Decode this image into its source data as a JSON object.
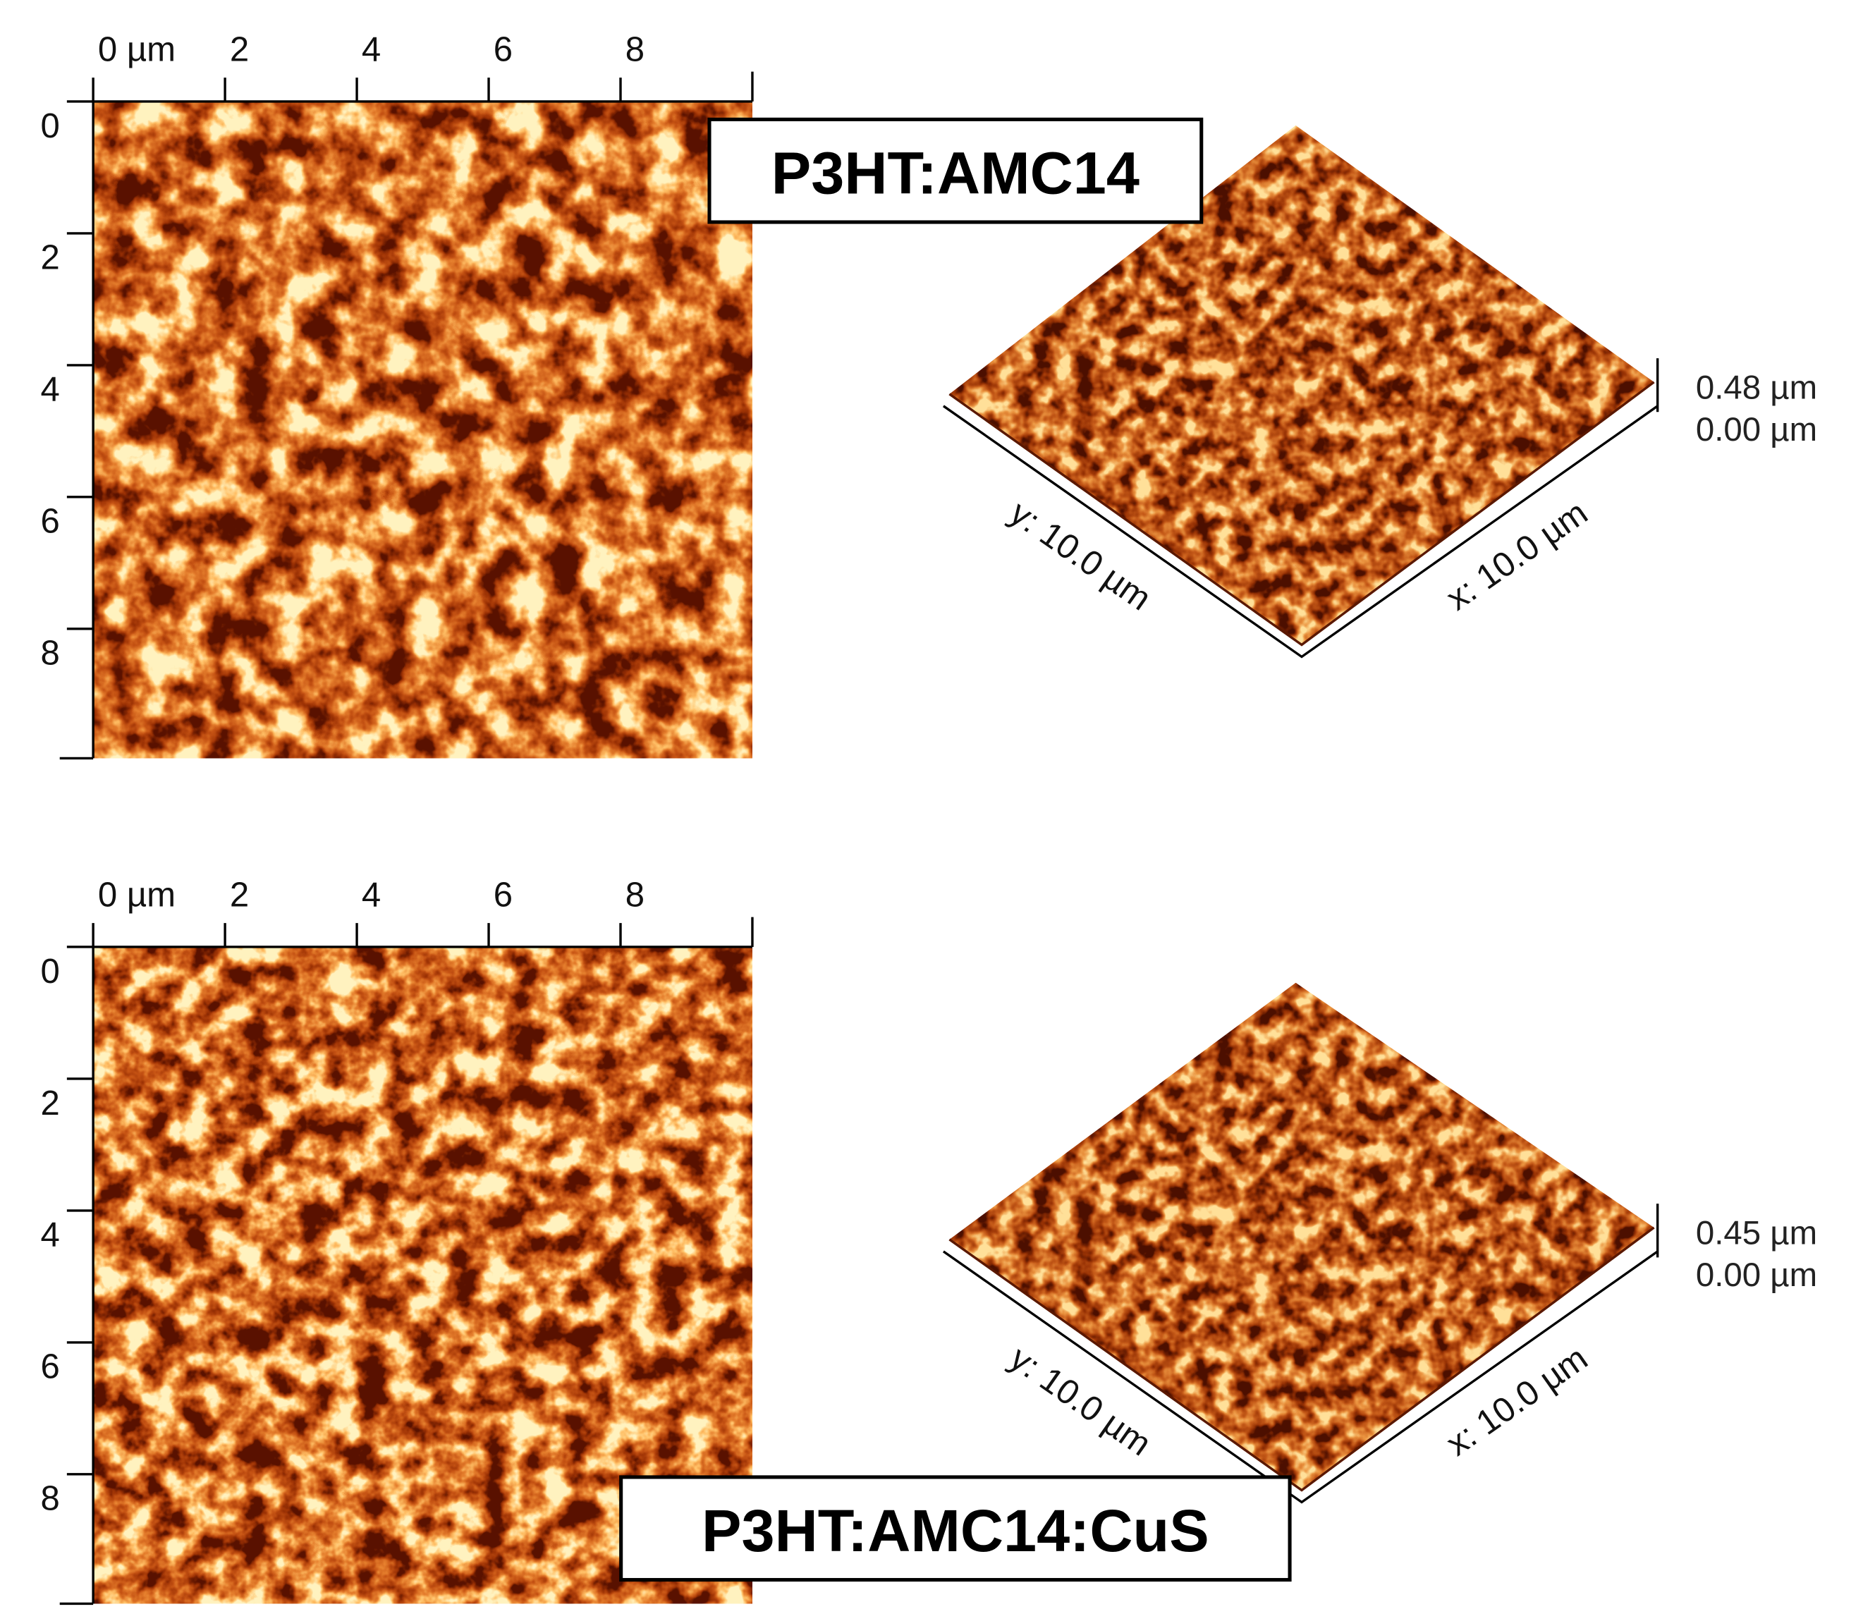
{
  "panels": [
    {
      "title": "P3HT:AMC14",
      "map": {
        "x_ticks": [
          "0 µm",
          "2",
          "4",
          "6",
          "8"
        ],
        "y_ticks": [
          "0",
          "2",
          "4",
          "6",
          "8"
        ]
      },
      "surface": {
        "y_label": "y: 10.0 µm",
        "x_label": "x: 10.0 µm",
        "z_max": "0.48 µm",
        "z_min": "0.00 µm"
      }
    },
    {
      "title": "P3HT:AMC14:CuS",
      "map": {
        "x_ticks": [
          "0 µm",
          "2",
          "4",
          "6",
          "8"
        ],
        "y_ticks": [
          "0",
          "2",
          "4",
          "6",
          "8"
        ]
      },
      "surface": {
        "y_label": "y: 10.0 µm",
        "x_label": "x: 10.0 µm",
        "z_max": "0.45 µm",
        "z_min": "0.00 µm"
      }
    }
  ]
}
